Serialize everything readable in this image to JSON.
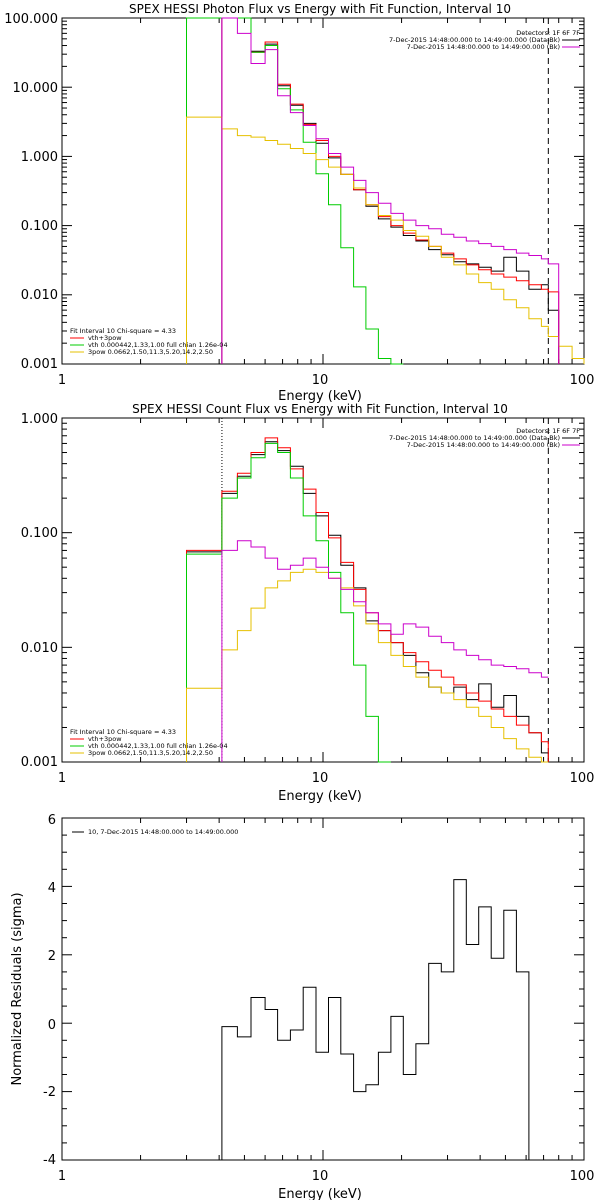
{
  "chart_data": [
    {
      "type": "line",
      "title": "SPEX HESSI Photon Flux vs Energy with Fit Function, Interval 10",
      "xlabel": "Energy (keV)",
      "ylabel": "",
      "xscale": "log",
      "yscale": "log",
      "xlim": [
        1,
        100
      ],
      "ylim": [
        0.001,
        100
      ],
      "x_ticks": [
        "1",
        "10",
        "100"
      ],
      "y_ticks": [
        "0.001",
        "0.010",
        "0.100",
        "1.000",
        "10.000",
        "100.000"
      ],
      "legend_placement": "top-right",
      "legend": {
        "header": "Detectors: 1F 6F 7F",
        "lines": [
          "7-Dec-2015 14:48:00.000 to 14:49:00.000 (Data-Bk)",
          "7-Dec-2015 14:48:00.000 to 14:49:00.000 (Bk)"
        ]
      },
      "fit_legend_placement": "bottom-left",
      "fit_legend": [
        "Fit Interval 10   Chi-square = 4.33",
        "vth+3pow",
        "vth 0.000442,1.33,1.00   full chian 1.26e-04",
        "3pow 0.0662,1.50,11.3,5.20,14.2,2.50"
      ],
      "vlines": [
        {
          "x": 4.1,
          "style": "solid",
          "color": "#cc00cc"
        },
        {
          "x": 73,
          "style": "dashed",
          "color": "#000000"
        }
      ],
      "edges": [
        3,
        4.1,
        4.7,
        5.3,
        6,
        6.7,
        7.5,
        8.4,
        9.4,
        10.5,
        11.7,
        13.1,
        14.6,
        16.3,
        18.2,
        20.3,
        22.7,
        25.4,
        28.4,
        31.7,
        35.4,
        39.5,
        44.1,
        49.3,
        55.1,
        61.5,
        68.7,
        73,
        80,
        90,
        100
      ],
      "series": [
        {
          "name": "Data-Bk",
          "color": "#000000",
          "start": 1,
          "values": [
            100,
            100,
            33,
            42,
            10.5,
            5.5,
            3,
            1.55,
            0.95,
            0.55,
            0.33,
            0.19,
            0.125,
            0.095,
            0.072,
            0.06,
            0.045,
            0.038,
            0.03,
            0.028,
            0.025,
            0.022,
            0.035,
            0.022,
            0.012,
            0.014,
            0.006
          ]
        },
        {
          "name": "vth+3pow",
          "color": "#ff0000",
          "start": 1,
          "values": [
            100,
            100,
            32,
            45,
            11,
            5.7,
            2.9,
            1.7,
            1.0,
            0.55,
            0.33,
            0.2,
            0.135,
            0.1,
            0.078,
            0.062,
            0.05,
            0.04,
            0.033,
            0.027,
            0.023,
            0.02,
            0.018,
            0.016,
            0.014,
            0.012,
            0.011
          ]
        },
        {
          "name": "vth",
          "color": "#00cc00",
          "start": 0,
          "values": [
            100,
            100,
            100,
            32,
            40,
            9.5,
            4.7,
            1.6,
            0.56,
            0.2,
            0.048,
            0.013,
            0.0032,
            0.0012,
            0.0004
          ]
        },
        {
          "name": "3pow",
          "color": "#e6c000",
          "start": 0,
          "values": [
            3.7,
            2.5,
            2.0,
            1.9,
            1.7,
            1.5,
            1.3,
            1.1,
            0.9,
            0.7,
            0.55,
            0.35,
            0.2,
            0.14,
            0.12,
            0.085,
            0.07,
            0.05,
            0.035,
            0.027,
            0.02,
            0.015,
            0.012,
            0.0085,
            0.0065,
            0.0045,
            0.0035,
            0.0025,
            0.0018,
            0.0012
          ]
        },
        {
          "name": "Bk",
          "color": "#cc00cc",
          "start": 1,
          "values": [
            100,
            60,
            22,
            35,
            7.5,
            4.3,
            2.8,
            1.8,
            1.1,
            0.7,
            0.45,
            0.3,
            0.21,
            0.15,
            0.12,
            0.1,
            0.09,
            0.075,
            0.068,
            0.06,
            0.055,
            0.05,
            0.045,
            0.04,
            0.037,
            0.033,
            0.028
          ]
        }
      ]
    },
    {
      "type": "line",
      "title": "SPEX HESSI Count Flux vs Energy with Fit Function, Interval 10",
      "xlabel": "Energy (keV)",
      "ylabel": "",
      "xscale": "log",
      "yscale": "log",
      "xlim": [
        1,
        100
      ],
      "ylim": [
        0.001,
        1
      ],
      "x_ticks": [
        "1",
        "10",
        "100"
      ],
      "y_ticks": [
        "0.001",
        "0.010",
        "0.100",
        "1.000"
      ],
      "legend_placement": "top-right",
      "legend": {
        "header": "Detectors: 1F 6F 7F",
        "lines": [
          "7-Dec-2015 14:48:00.000 to 14:49:00.000 (Data-Bk)",
          "7-Dec-2015 14:48:00.000 to 14:49:00.000 (Bk)"
        ]
      },
      "fit_legend_placement": "bottom-left",
      "fit_legend": [
        "Fit Interval 10   Chi-square = 4.33",
        "vth+3pow",
        "vth 0.000442,1.33,1.00   full chian 1.26e-04",
        "3pow 0.0662,1.50,11.3,5.20,14.2,2.50"
      ],
      "vlines": [
        {
          "x": 4.1,
          "style": "dotted",
          "color": "#000000"
        },
        {
          "x": 73,
          "style": "dashed",
          "color": "#000000"
        }
      ],
      "edges": [
        3,
        4.1,
        4.7,
        5.3,
        6,
        6.7,
        7.5,
        8.4,
        9.4,
        10.5,
        11.7,
        13.1,
        14.6,
        16.3,
        18.2,
        20.3,
        22.7,
        25.4,
        28.4,
        31.7,
        35.4,
        39.5,
        44.1,
        49.3,
        55.1,
        61.5,
        68.7,
        73
      ],
      "series": [
        {
          "name": "Data-Bk",
          "color": "#000000",
          "start": 0,
          "values": [
            0.068,
            0.22,
            0.31,
            0.48,
            0.62,
            0.52,
            0.38,
            0.22,
            0.14,
            0.095,
            0.052,
            0.033,
            0.017,
            0.014,
            0.011,
            0.0085,
            0.006,
            0.0045,
            0.004,
            0.0045,
            0.0035,
            0.0048,
            0.003,
            0.0038,
            0.0025,
            0.0018,
            0.0012
          ]
        },
        {
          "name": "vth+3pow",
          "color": "#ff0000",
          "start": 0,
          "values": [
            0.07,
            0.23,
            0.33,
            0.5,
            0.67,
            0.55,
            0.36,
            0.24,
            0.15,
            0.09,
            0.055,
            0.032,
            0.02,
            0.014,
            0.011,
            0.009,
            0.0075,
            0.0063,
            0.0055,
            0.0047,
            0.004,
            0.0034,
            0.0029,
            0.0025,
            0.0021,
            0.0018,
            0.0015
          ]
        },
        {
          "name": "vth",
          "color": "#00cc00",
          "start": 0,
          "values": [
            0.065,
            0.2,
            0.3,
            0.45,
            0.6,
            0.5,
            0.3,
            0.14,
            0.085,
            0.045,
            0.02,
            0.007,
            0.0025,
            0.001
          ]
        },
        {
          "name": "3pow",
          "color": "#e6c000",
          "start": 0,
          "values": [
            0.0044,
            0.0095,
            0.014,
            0.022,
            0.033,
            0.038,
            0.045,
            0.048,
            0.045,
            0.04,
            0.033,
            0.023,
            0.016,
            0.011,
            0.0085,
            0.0068,
            0.0055,
            0.0045,
            0.004,
            0.0035,
            0.003,
            0.0025,
            0.002,
            0.0016,
            0.0013,
            0.0011,
            0.001
          ]
        },
        {
          "name": "Bk",
          "color": "#cc00cc",
          "start": 1,
          "values": [
            0.07,
            0.085,
            0.075,
            0.06,
            0.048,
            0.052,
            0.06,
            0.05,
            0.04,
            0.032,
            0.025,
            0.02,
            0.016,
            0.013,
            0.016,
            0.015,
            0.0125,
            0.011,
            0.0095,
            0.0085,
            0.0078,
            0.007,
            0.0068,
            0.0065,
            0.006,
            0.0055,
            0.005
          ]
        }
      ]
    },
    {
      "type": "line",
      "title": "",
      "xlabel": "Energy (keV)",
      "ylabel": "Normalized Residuals (sigma)",
      "xscale": "log",
      "yscale": "linear",
      "xlim": [
        1,
        100
      ],
      "ylim": [
        -4,
        6
      ],
      "x_ticks": [
        "1",
        "10",
        "100"
      ],
      "y_ticks": [
        "-4",
        "-2",
        "0",
        "2",
        "4",
        "6"
      ],
      "legend_placement": "top-left",
      "legend": {
        "header": "",
        "lines": [
          "10, 7-Dec-2015 14:48:00.000 to 14:49:00.000"
        ]
      },
      "edges": [
        4.1,
        4.7,
        5.3,
        6,
        6.7,
        7.5,
        8.4,
        9.4,
        10.5,
        11.7,
        13.1,
        14.6,
        16.3,
        18.2,
        20.3,
        22.7,
        25.4,
        28.4,
        31.7,
        35.4,
        39.5,
        44.1,
        49.3,
        55.1,
        61.5,
        68.7,
        73
      ],
      "series": [
        {
          "name": "",
          "color": "#000000",
          "start": 0,
          "values": [
            -0.1,
            -0.4,
            0.75,
            0.4,
            -0.5,
            -0.2,
            1.05,
            -0.85,
            0.75,
            -0.9,
            -2.0,
            -1.8,
            -0.85,
            0.2,
            -1.5,
            -0.6,
            1.75,
            1.5,
            4.2,
            2.3,
            3.4,
            1.9,
            3.3,
            1.5
          ]
        }
      ]
    }
  ]
}
